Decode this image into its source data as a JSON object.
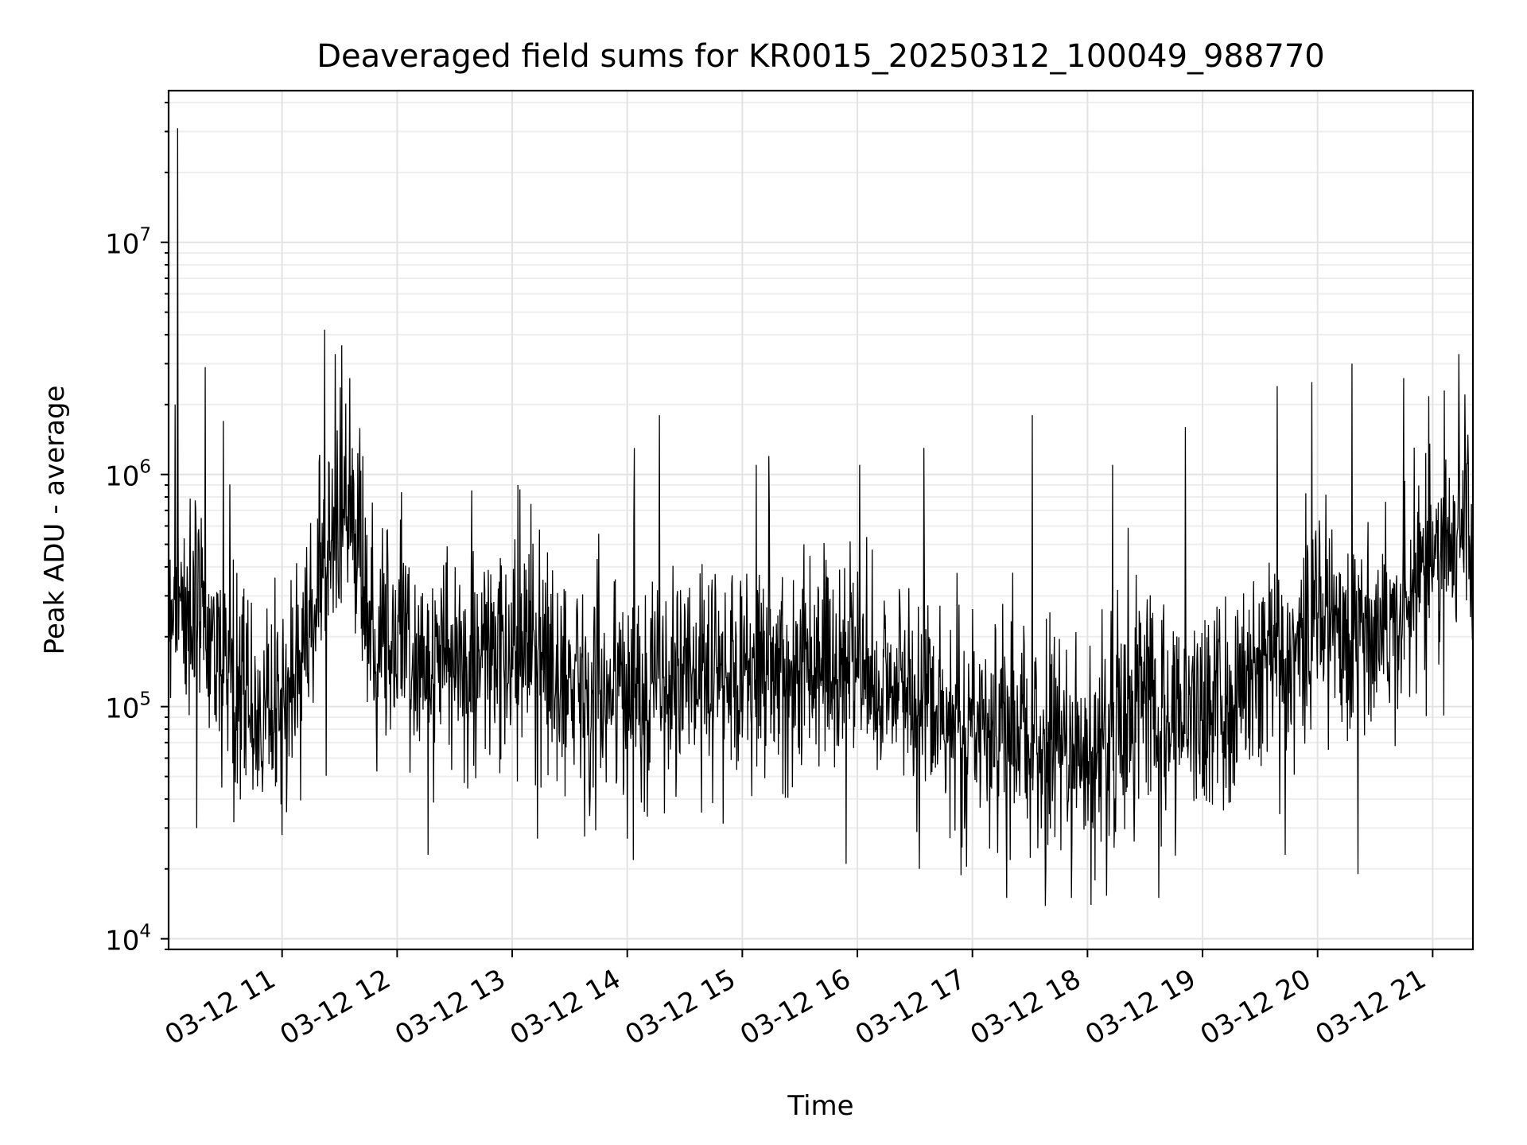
{
  "chart_data": {
    "type": "line",
    "title": "Deaveraged field sums for KR0015_20250312_100049_988770",
    "xlabel": "Time",
    "ylabel": "Peak ADU - average",
    "yscale": "log",
    "ylim": [
      9000,
      45000000
    ],
    "xlim_hours": [
      10.0136,
      21.35
    ],
    "grid": "on",
    "x_ticks": [
      {
        "hour": 11,
        "label": "03-12 11"
      },
      {
        "hour": 12,
        "label": "03-12 12"
      },
      {
        "hour": 13,
        "label": "03-12 13"
      },
      {
        "hour": 14,
        "label": "03-12 14"
      },
      {
        "hour": 15,
        "label": "03-12 15"
      },
      {
        "hour": 16,
        "label": "03-12 16"
      },
      {
        "hour": 17,
        "label": "03-12 17"
      },
      {
        "hour": 18,
        "label": "03-12 18"
      },
      {
        "hour": 19,
        "label": "03-12 19"
      },
      {
        "hour": 20,
        "label": "03-12 20"
      },
      {
        "hour": 21,
        "label": "03-12 21"
      }
    ],
    "y_ticks": [
      {
        "value": 10000,
        "base": "10",
        "exp": "4"
      },
      {
        "value": 100000,
        "base": "10",
        "exp": "5"
      },
      {
        "value": 1000000,
        "base": "10",
        "exp": "6"
      },
      {
        "value": 10000000,
        "base": "10",
        "exp": "7"
      }
    ],
    "series": [
      {
        "name": "field sum",
        "color": "#000000",
        "baseline_trend": [
          {
            "hour": 10.01,
            "value": 300000
          },
          {
            "hour": 10.3,
            "value": 250000
          },
          {
            "hour": 10.6,
            "value": 110000
          },
          {
            "hour": 10.9,
            "value": 90000
          },
          {
            "hour": 11.15,
            "value": 150000
          },
          {
            "hour": 11.35,
            "value": 400000
          },
          {
            "hour": 11.55,
            "value": 700000
          },
          {
            "hour": 11.75,
            "value": 250000
          },
          {
            "hour": 12.3,
            "value": 150000
          },
          {
            "hour": 13.0,
            "value": 170000
          },
          {
            "hour": 14.0,
            "value": 110000
          },
          {
            "hour": 15.0,
            "value": 150000
          },
          {
            "hour": 16.0,
            "value": 150000
          },
          {
            "hour": 16.5,
            "value": 110000
          },
          {
            "hour": 17.2,
            "value": 80000
          },
          {
            "hour": 18.0,
            "value": 60000
          },
          {
            "hour": 18.5,
            "value": 110000
          },
          {
            "hour": 19.0,
            "value": 90000
          },
          {
            "hour": 19.6,
            "value": 150000
          },
          {
            "hour": 20.0,
            "value": 250000
          },
          {
            "hour": 20.5,
            "value": 200000
          },
          {
            "hour": 21.0,
            "value": 450000
          },
          {
            "hour": 21.35,
            "value": 600000
          }
        ],
        "peaks": [
          {
            "hour": 10.09,
            "value": 31000000
          },
          {
            "hour": 10.07,
            "value": 2000000
          },
          {
            "hour": 10.33,
            "value": 2900000
          },
          {
            "hour": 10.49,
            "value": 1700000
          },
          {
            "hour": 11.37,
            "value": 4200000
          },
          {
            "hour": 11.46,
            "value": 3300000
          },
          {
            "hour": 11.52,
            "value": 3600000
          },
          {
            "hour": 11.59,
            "value": 2600000
          },
          {
            "hour": 11.7,
            "value": 1200000
          },
          {
            "hour": 13.05,
            "value": 900000
          },
          {
            "hour": 14.06,
            "value": 1300000
          },
          {
            "hour": 14.28,
            "value": 1800000
          },
          {
            "hour": 15.12,
            "value": 1100000
          },
          {
            "hour": 15.23,
            "value": 1200000
          },
          {
            "hour": 16.58,
            "value": 1300000
          },
          {
            "hour": 16.02,
            "value": 1100000
          },
          {
            "hour": 17.52,
            "value": 1800000
          },
          {
            "hour": 18.22,
            "value": 1100000
          },
          {
            "hour": 18.85,
            "value": 1600000
          },
          {
            "hour": 19.65,
            "value": 2400000
          },
          {
            "hour": 19.95,
            "value": 2500000
          },
          {
            "hour": 20.3,
            "value": 3000000
          },
          {
            "hour": 20.75,
            "value": 2600000
          },
          {
            "hour": 21.23,
            "value": 3300000
          },
          {
            "hour": 21.1,
            "value": 2300000
          }
        ],
        "dips": [
          {
            "hour": 10.26,
            "value": 30000
          },
          {
            "hour": 11.0,
            "value": 28000
          },
          {
            "hour": 12.27,
            "value": 23000
          },
          {
            "hour": 13.22,
            "value": 27000
          },
          {
            "hour": 14.0,
            "value": 27000
          },
          {
            "hour": 15.9,
            "value": 21000
          },
          {
            "hour": 16.54,
            "value": 20000
          },
          {
            "hour": 17.3,
            "value": 15000
          },
          {
            "hour": 17.86,
            "value": 15000
          },
          {
            "hour": 18.03,
            "value": 14000
          },
          {
            "hour": 18.62,
            "value": 15000
          },
          {
            "hour": 19.72,
            "value": 23000
          },
          {
            "hour": 20.35,
            "value": 19000
          }
        ]
      }
    ]
  }
}
